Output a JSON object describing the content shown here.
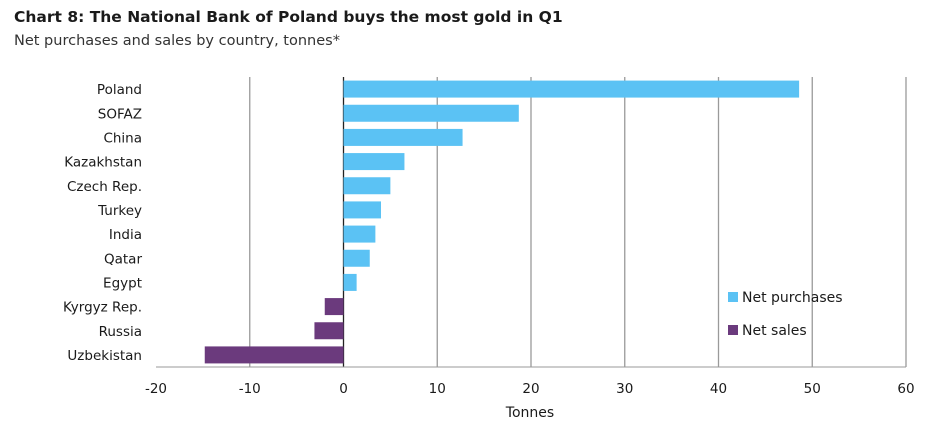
{
  "title": "Chart 8: The National Bank of Poland buys the most gold in Q1",
  "subtitle": "Net purchases and sales by country, tonnes*",
  "chart_data": {
    "type": "bar",
    "orientation": "horizontal",
    "categories": [
      "Poland",
      "SOFAZ",
      "China",
      "Kazakhstan",
      "Czech Rep.",
      "Turkey",
      "India",
      "Qatar",
      "Egypt",
      "Kyrgyz Rep.",
      "Russia",
      "Uzbekistan"
    ],
    "series": [
      {
        "name": "Net purchases",
        "color": "#5bc2f4",
        "values": [
          48.6,
          18.7,
          12.7,
          6.5,
          5.0,
          4.0,
          3.4,
          2.8,
          1.4,
          null,
          null,
          null
        ]
      },
      {
        "name": "Net sales",
        "color": "#6b3a7d",
        "values": [
          null,
          null,
          null,
          null,
          null,
          null,
          null,
          null,
          null,
          -2.0,
          -3.1,
          -14.8
        ]
      }
    ],
    "values": [
      48.6,
      18.7,
      12.7,
      6.5,
      5.0,
      4.0,
      3.4,
      2.8,
      1.4,
      -2.0,
      -3.1,
      -14.8
    ],
    "xlabel": "Tonnes",
    "ylabel": "",
    "xlim": [
      -20,
      60
    ],
    "xticks": [
      -20,
      -10,
      0,
      10,
      20,
      30,
      40,
      50,
      60
    ],
    "grid": true,
    "legend_position": "bottom-right"
  }
}
